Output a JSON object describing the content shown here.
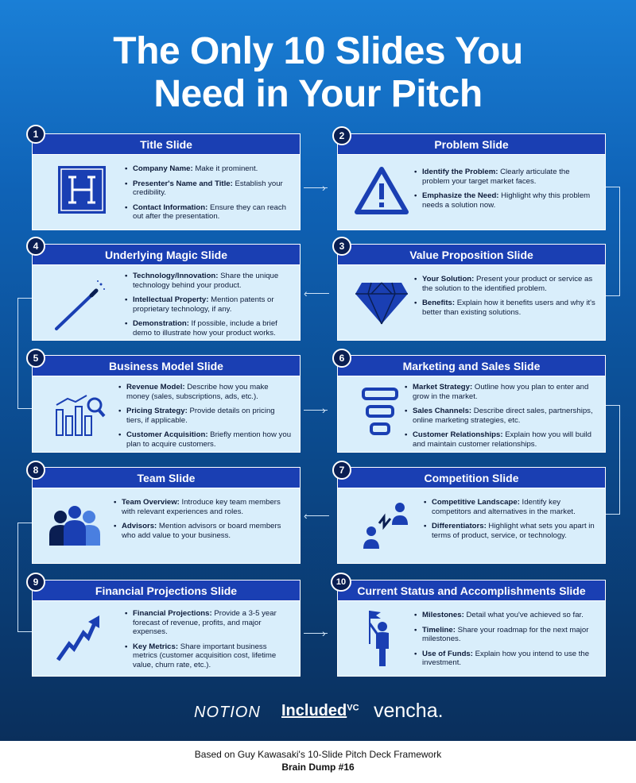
{
  "title": {
    "line1": "The Only 10 Slides You",
    "line2": "Need in Your Pitch"
  },
  "slides": {
    "s1": {
      "num": "1",
      "title": "Title Slide",
      "icon": "letter-h-icon",
      "items": [
        {
          "k": "Company Name:",
          "v": " Make it prominent."
        },
        {
          "k": "Presenter's Name and Title:",
          "v": " Establish your credibility."
        },
        {
          "k": "Contact Information:",
          "v": " Ensure they can reach out after the presentation."
        }
      ]
    },
    "s2": {
      "num": "2",
      "title": "Problem Slide",
      "icon": "warning-icon",
      "items": [
        {
          "k": "Identify the Problem:",
          "v": " Clearly articulate the problem your target market faces."
        },
        {
          "k": "Emphasize the Need:",
          "v": " Highlight why this problem needs a solution now."
        }
      ]
    },
    "s3": {
      "num": "3",
      "title": "Value Proposition Slide",
      "icon": "diamond-icon",
      "items": [
        {
          "k": "Your Solution:",
          "v": " Present your product or service as the solution to the identified problem."
        },
        {
          "k": "Benefits:",
          "v": " Explain how it benefits users and why it's better than existing solutions."
        }
      ]
    },
    "s4": {
      "num": "4",
      "title": "Underlying Magic Slide",
      "icon": "magic-wand-icon",
      "items": [
        {
          "k": "Technology/Innovation:",
          "v": " Share the unique technology behind your product."
        },
        {
          "k": "Intellectual Property:",
          "v": " Mention patents or proprietary technology, if any."
        },
        {
          "k": "Demonstration:",
          "v": " If possible, include a brief demo to illustrate how your product works."
        }
      ]
    },
    "s5": {
      "num": "5",
      "title": "Business Model Slide",
      "icon": "chart-magnifier-icon",
      "items": [
        {
          "k": "Revenue Model:",
          "v": " Describe how you make money (sales, subscriptions, ads, etc.)."
        },
        {
          "k": "Pricing Strategy:",
          "v": " Provide details on pricing tiers, if applicable."
        },
        {
          "k": "Customer Acquisition:",
          "v": " Briefly mention how you plan to acquire customers."
        }
      ]
    },
    "s6": {
      "num": "6",
      "title": "Marketing and Sales Slide",
      "icon": "funnel-icon",
      "items": [
        {
          "k": "Market Strategy:",
          "v": " Outline how you plan to enter and grow in the market."
        },
        {
          "k": "Sales Channels:",
          "v": " Describe direct sales, partnerships, online marketing strategies, etc."
        },
        {
          "k": "Customer Relationships:",
          "v": " Explain how you will build and maintain customer relationships."
        }
      ]
    },
    "s7": {
      "num": "7",
      "title": "Competition Slide",
      "icon": "competitors-icon",
      "items": [
        {
          "k": "Competitive Landscape:",
          "v": " Identify key competitors and alternatives in the market."
        },
        {
          "k": "Differentiators:",
          "v": " Highlight what sets you apart in terms of product, service, or technology."
        }
      ]
    },
    "s8": {
      "num": "8",
      "title": "Team Slide",
      "icon": "team-icon",
      "items": [
        {
          "k": "Team Overview:",
          "v": " Introduce key team members with relevant experiences and roles."
        },
        {
          "k": "Advisors:",
          "v": " Mention advisors or board members who add value to your business."
        }
      ]
    },
    "s9": {
      "num": "9",
      "title": "Financial Projections Slide",
      "icon": "growth-arrow-icon",
      "items": [
        {
          "k": "Financial Projections:",
          "v": " Provide a 3-5 year forecast of revenue, profits, and major expenses."
        },
        {
          "k": "Key Metrics:",
          "v": " Share important business metrics (customer acquisition cost, lifetime value, churn rate, etc.)."
        }
      ]
    },
    "s10": {
      "num": "10",
      "title": "Current Status and Accomplishments Slide",
      "icon": "flag-person-icon",
      "items": [
        {
          "k": "Milestones:",
          "v": " Detail what you've achieved so far."
        },
        {
          "k": "Timeline:",
          "v": " Share your roadmap for the next major milestones."
        },
        {
          "k": "Use of Funds:",
          "v": " Explain how you intend to use the investment."
        }
      ]
    }
  },
  "logos": {
    "notion": "NOTION",
    "included": "Included",
    "included_vc": "VC",
    "vencha": "vencha."
  },
  "footer": {
    "line1": "Based on Guy Kawasaki's 10-Slide Pitch Deck Framework",
    "line2": "Brain Dump #16"
  },
  "colors": {
    "header": "#1a3fb3",
    "card": "#d9eefb",
    "icon": "#1a3fb3",
    "badge": "#0a1e52"
  }
}
